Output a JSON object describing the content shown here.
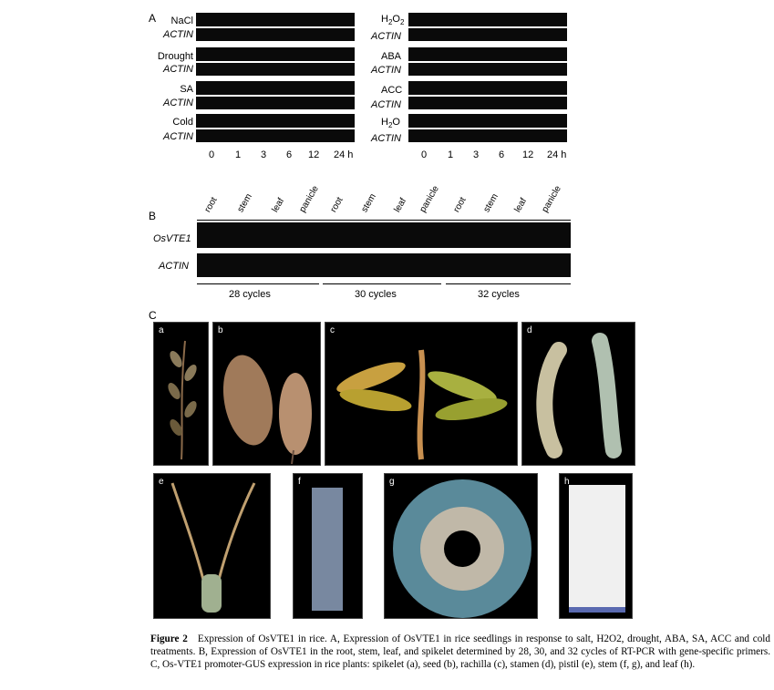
{
  "panel_a": {
    "label": "A",
    "left_treatments": [
      "NaCl",
      "Drought",
      "SA",
      "Cold"
    ],
    "right_treatments": [
      "H2O2",
      "ABA",
      "ACC",
      "H2O"
    ],
    "control_label": "ACTIN",
    "time_points": [
      "0",
      "1",
      "3",
      "6",
      "12",
      "24 h"
    ]
  },
  "panel_b": {
    "label": "B",
    "gene_label": "OsVTE1",
    "control_label": "ACTIN",
    "lanes": [
      "root",
      "stem",
      "leaf",
      "panicle",
      "root",
      "stem",
      "leaf",
      "panicle",
      "root",
      "stem",
      "leaf",
      "panicle"
    ],
    "cycle_groups": [
      "28 cycles",
      "30 cycles",
      "32 cycles"
    ]
  },
  "panel_c": {
    "label": "C",
    "photos": [
      "a",
      "b",
      "c",
      "d",
      "e",
      "f",
      "g",
      "h"
    ]
  },
  "caption": {
    "figure_label": "Figure 2",
    "text": "Expression of OsVTE1 in rice. A, Expression of OsVTE1 in rice seedlings in response to salt, H2O2, drought, ABA, SA, ACC and cold treatments. B, Expression of OsVTE1 in the root, stem, leaf, and spikelet determined by 28, 30, and 32 cycles of RT-PCR with gene-specific primers. C, Os-VTE1 promoter-GUS expression in rice plants: spikelet (a), seed (b), rachilla (c), stamen (d), pistil (e), stem (f, g), and leaf (h)."
  }
}
